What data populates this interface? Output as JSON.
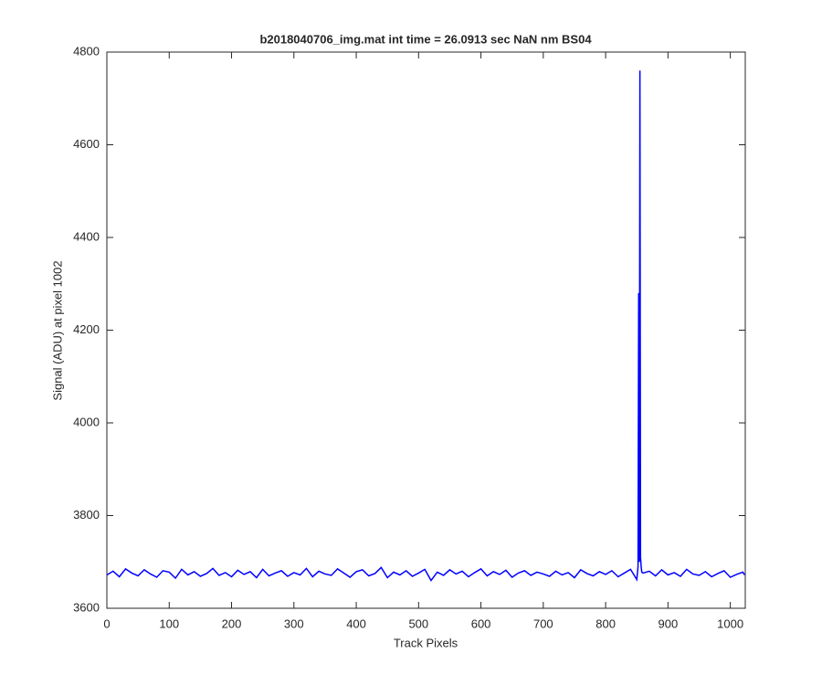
{
  "chart_data": {
    "type": "line",
    "title": "b2018040706_img.mat int time = 26.0913 sec  NaN nm BS04",
    "x_label": "Track Pixels",
    "y_label": "Signal (ADU) at pixel 1002",
    "xlim": [
      0,
      1024
    ],
    "ylim": [
      3600,
      4800
    ],
    "xticks": [
      0,
      100,
      200,
      300,
      400,
      500,
      600,
      700,
      800,
      900,
      1000
    ],
    "yticks": [
      3600,
      3800,
      4000,
      4200,
      4400,
      4600,
      4800
    ],
    "grid": false,
    "series": [
      {
        "color": "#0000ff",
        "x": [
          0,
          10,
          20,
          30,
          40,
          50,
          60,
          70,
          80,
          90,
          100,
          110,
          120,
          130,
          140,
          150,
          160,
          170,
          180,
          190,
          200,
          210,
          220,
          230,
          240,
          250,
          260,
          270,
          280,
          290,
          300,
          310,
          320,
          330,
          340,
          350,
          360,
          370,
          380,
          390,
          400,
          410,
          420,
          430,
          440,
          450,
          460,
          470,
          480,
          490,
          500,
          510,
          520,
          530,
          540,
          550,
          560,
          570,
          580,
          590,
          600,
          610,
          620,
          630,
          640,
          650,
          660,
          670,
          680,
          690,
          700,
          710,
          720,
          730,
          740,
          750,
          760,
          770,
          780,
          790,
          800,
          810,
          820,
          830,
          840,
          850,
          852,
          853,
          854,
          855,
          856,
          857,
          858,
          860,
          870,
          880,
          890,
          900,
          910,
          920,
          930,
          940,
          950,
          960,
          970,
          980,
          990,
          1000,
          1010,
          1020,
          1023
        ],
        "values": [
          3672,
          3680,
          3668,
          3685,
          3676,
          3670,
          3683,
          3674,
          3667,
          3681,
          3678,
          3665,
          3684,
          3672,
          3679,
          3669,
          3675,
          3686,
          3671,
          3677,
          3668,
          3682,
          3673,
          3679,
          3666,
          3684,
          3670,
          3676,
          3681,
          3669,
          3677,
          3672,
          3686,
          3668,
          3680,
          3674,
          3671,
          3685,
          3676,
          3667,
          3679,
          3683,
          3670,
          3675,
          3688,
          3666,
          3678,
          3672,
          3681,
          3669,
          3676,
          3684,
          3660,
          3678,
          3671,
          3683,
          3674,
          3680,
          3668,
          3677,
          3685,
          3670,
          3679,
          3673,
          3682,
          3667,
          3676,
          3681,
          3671,
          3678,
          3674,
          3669,
          3680,
          3672,
          3677,
          3666,
          3683,
          3675,
          3670,
          3679,
          3673,
          3681,
          3668,
          3676,
          3684,
          3662,
          3690,
          4280,
          3700,
          4760,
          3710,
          3690,
          3678,
          3676,
          3680,
          3670,
          3683,
          3672,
          3677,
          3669,
          3684,
          3674,
          3671,
          3679,
          3668,
          3675,
          3681,
          3667,
          3673,
          3678,
          3672
        ]
      }
    ]
  }
}
